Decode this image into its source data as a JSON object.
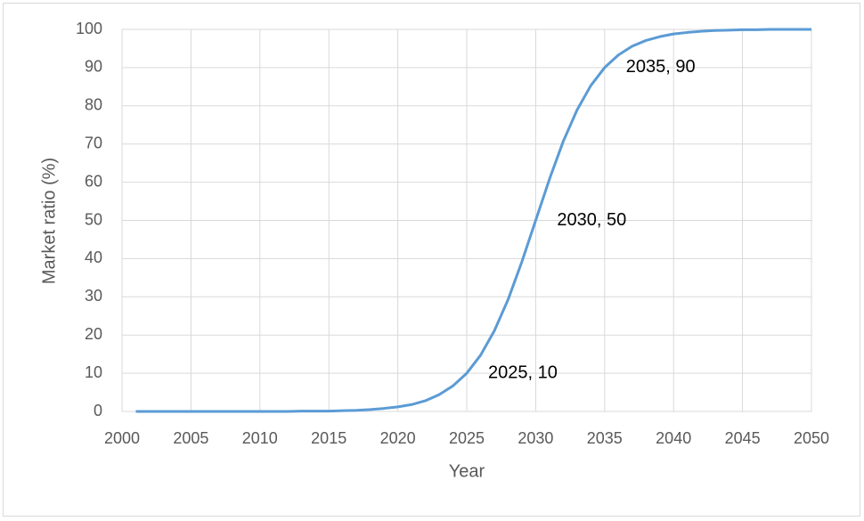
{
  "chart_data": {
    "type": "line",
    "x_label": "Year",
    "y_label": "Market ratio (%)",
    "x": [
      2001,
      2002,
      2003,
      2004,
      2005,
      2006,
      2007,
      2008,
      2009,
      2010,
      2011,
      2012,
      2013,
      2014,
      2015,
      2016,
      2017,
      2018,
      2019,
      2020,
      2021,
      2022,
      2023,
      2024,
      2025,
      2026,
      2027,
      2028,
      2029,
      2030,
      2031,
      2032,
      2033,
      2034,
      2035,
      2036,
      2037,
      2038,
      2039,
      2040,
      2041,
      2042,
      2043,
      2044,
      2045,
      2046,
      2047,
      2048,
      2049,
      2050
    ],
    "series": [
      {
        "color": "#5b9bd5",
        "values": [
          0,
          0,
          0,
          0,
          0,
          0,
          0,
          0,
          0,
          0,
          0,
          0,
          0.1,
          0.1,
          0.1,
          0.2,
          0.3,
          0.5,
          0.8,
          1.2,
          1.8,
          2.8,
          4.4,
          6.7,
          10,
          14.7,
          21.1,
          29.3,
          39.2,
          50,
          60.8,
          70.7,
          78.9,
          85.3,
          90,
          93.3,
          95.6,
          97.1,
          98.1,
          98.8,
          99.2,
          99.5,
          99.7,
          99.8,
          99.9,
          99.9,
          100,
          100,
          100,
          100
        ]
      }
    ],
    "annotations": [
      {
        "text": "2025, 10",
        "x": 2025,
        "y": 10
      },
      {
        "text": "2030, 50",
        "x": 2030,
        "y": 50
      },
      {
        "text": "2035, 90",
        "x": 2035,
        "y": 90
      }
    ],
    "xlim": [
      2000,
      2050
    ],
    "xticks": [
      2000,
      2005,
      2010,
      2015,
      2020,
      2025,
      2030,
      2035,
      2040,
      2045,
      2050
    ],
    "ylim": [
      0,
      100
    ],
    "yticks": [
      0,
      10,
      20,
      30,
      40,
      50,
      60,
      70,
      80,
      90,
      100
    ],
    "grid": true
  }
}
